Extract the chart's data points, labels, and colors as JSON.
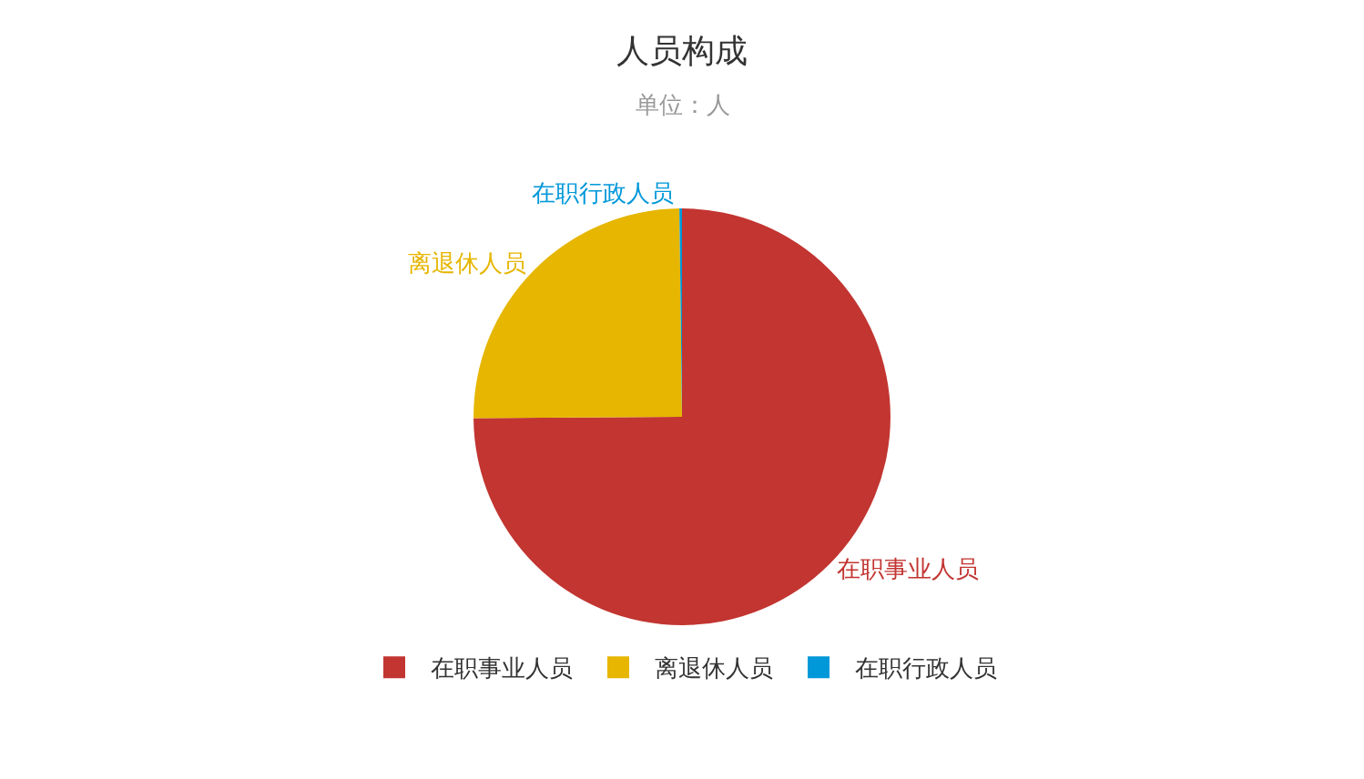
{
  "chart_data": {
    "type": "pie",
    "title": "人员构成",
    "subtitle": "单位：人",
    "categories": [
      "在职事业人员",
      "离退休人员",
      "在职行政人员"
    ],
    "values": [
      74.9,
      24.9,
      0.2
    ],
    "colors": [
      "#c23531",
      "#e6b600",
      "#0098d9"
    ],
    "legend": "bottom"
  }
}
